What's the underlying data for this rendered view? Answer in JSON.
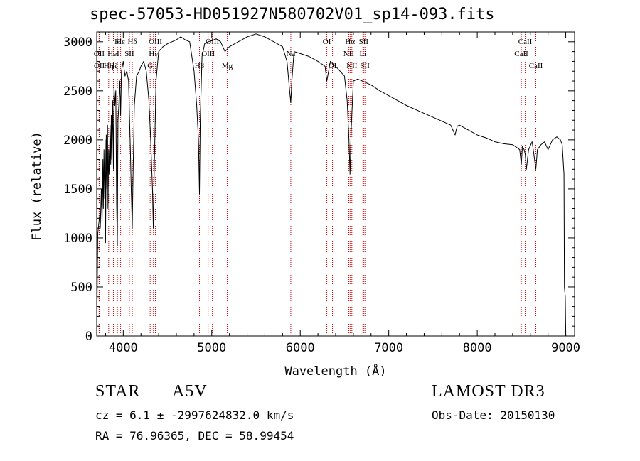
{
  "chart_data": {
    "type": "line",
    "title": "spec-57053-HD051927N580702V01_sp14-093.fits",
    "xlabel": "Wavelength (Å)",
    "ylabel": "Flux (relative)",
    "xlim": [
      3700,
      9100
    ],
    "ylim": [
      0,
      3100
    ],
    "xticks": [
      4000,
      5000,
      6000,
      7000,
      8000,
      9000
    ],
    "yticks": [
      0,
      500,
      1000,
      1500,
      2000,
      2500,
      3000
    ],
    "series": [
      {
        "name": "spectrum",
        "x": [
          3700,
          3712,
          3724,
          3736,
          3740,
          3752,
          3760,
          3770,
          3775,
          3782,
          3790,
          3795,
          3800,
          3808,
          3815,
          3822,
          3828,
          3835,
          3842,
          3850,
          3858,
          3865,
          3870,
          3880,
          3889,
          3895,
          3905,
          3915,
          3925,
          3933,
          3940,
          3950,
          3960,
          3970,
          3980,
          3990,
          4000,
          4020,
          4040,
          4060,
          4080,
          4090,
          4102,
          4110,
          4125,
          4150,
          4180,
          4200,
          4230,
          4260,
          4290,
          4310,
          4330,
          4340,
          4350,
          4370,
          4400,
          4450,
          4500,
          4550,
          4600,
          4650,
          4700,
          4750,
          4800,
          4830,
          4850,
          4861,
          4870,
          4890,
          4920,
          4960,
          5000,
          5050,
          5100,
          5150,
          5200,
          5300,
          5400,
          5500,
          5600,
          5700,
          5800,
          5850,
          5880,
          5893,
          5905,
          5930,
          6000,
          6100,
          6200,
          6280,
          6300,
          6340,
          6400,
          6450,
          6500,
          6530,
          6550,
          6562,
          6575,
          6600,
          6650,
          6700,
          6800,
          6900,
          7000,
          7100,
          7200,
          7300,
          7400,
          7500,
          7600,
          7700,
          7750,
          7762,
          7775,
          7800,
          7900,
          8000,
          8100,
          8200,
          8300,
          8400,
          8450,
          8480,
          8498,
          8510,
          8530,
          8542,
          8555,
          8580,
          8620,
          8640,
          8662,
          8680,
          8720,
          8760,
          8800,
          8850,
          8900,
          8940,
          8960,
          8980,
          8985,
          8995,
          9000
        ],
        "values": [
          0,
          1050,
          1150,
          1250,
          1100,
          1500,
          1150,
          1800,
          1300,
          1900,
          1400,
          2000,
          950,
          2050,
          1500,
          2150,
          1300,
          1900,
          1650,
          2150,
          1750,
          2250,
          1800,
          2400,
          1700,
          2550,
          2350,
          2500,
          1350,
          920,
          2200,
          2350,
          2600,
          2250,
          2700,
          2750,
          2800,
          2650,
          2700,
          2600,
          1900,
          1500,
          1100,
          1600,
          2350,
          2650,
          2700,
          2750,
          2800,
          2700,
          2400,
          2000,
          1500,
          1100,
          1700,
          2600,
          2900,
          2950,
          2980,
          3000,
          3020,
          3050,
          3020,
          3000,
          2700,
          2350,
          2000,
          1450,
          2200,
          2850,
          2980,
          3000,
          3010,
          3030,
          3000,
          2900,
          2950,
          3000,
          3050,
          3080,
          3050,
          3000,
          2950,
          2800,
          2500,
          2380,
          2600,
          2900,
          2880,
          2850,
          2800,
          2750,
          2600,
          2800,
          2750,
          2700,
          2650,
          2400,
          2000,
          1650,
          2100,
          2600,
          2620,
          2600,
          2560,
          2500,
          2450,
          2400,
          2350,
          2310,
          2270,
          2230,
          2190,
          2150,
          2050,
          2100,
          2140,
          2150,
          2100,
          2050,
          2020,
          1980,
          1960,
          1950,
          1920,
          1900,
          1750,
          1930,
          1900,
          1850,
          1700,
          1900,
          1980,
          1850,
          1700,
          1900,
          1950,
          1980,
          1900,
          2000,
          2030,
          2000,
          1950,
          1650,
          500,
          400,
          0
        ]
      }
    ],
    "lines": [
      {
        "name": "Hε",
        "x": 3970,
        "row": 1
      },
      {
        "name": "OII",
        "x": 3727,
        "row": 2
      },
      {
        "name": "OII",
        "x": 3729,
        "row": 3
      },
      {
        "name": "Hη",
        "x": 3835,
        "row": 3
      },
      {
        "name": "Hζ",
        "x": 3889,
        "row": 3
      },
      {
        "name": "K",
        "x": 3934,
        "row": 1
      },
      {
        "name": "HeI",
        "x": 3889,
        "row": 2
      },
      {
        "name": "SII",
        "x": 4069,
        "row": 2
      },
      {
        "name": "Hδ",
        "x": 4102,
        "row": 1
      },
      {
        "name": "OIII",
        "x": 4363,
        "row": 1
      },
      {
        "name": "Hγ",
        "x": 4341,
        "row": 2
      },
      {
        "name": "G",
        "x": 4304,
        "row": 3
      },
      {
        "name": "Hβ",
        "x": 4861,
        "row": 3
      },
      {
        "name": "OIII",
        "x": 4959,
        "row": 2
      },
      {
        "name": "OIII",
        "x": 5007,
        "row": 1
      },
      {
        "name": "Mg",
        "x": 5175,
        "row": 3
      },
      {
        "name": "Na",
        "x": 5893,
        "row": 2
      },
      {
        "name": "OI",
        "x": 6300,
        "row": 1
      },
      {
        "name": "OI",
        "x": 6364,
        "row": 3
      },
      {
        "name": "Hα",
        "x": 6563,
        "row": 1
      },
      {
        "name": "NII",
        "x": 6548,
        "row": 2
      },
      {
        "name": "NII",
        "x": 6583,
        "row": 3
      },
      {
        "name": "SII",
        "x": 6716,
        "row": 1
      },
      {
        "name": "Li",
        "x": 6708,
        "row": 2
      },
      {
        "name": "SII",
        "x": 6731,
        "row": 3
      },
      {
        "name": "CaII",
        "x": 8542,
        "row": 1
      },
      {
        "name": "CaII",
        "x": 8498,
        "row": 2
      },
      {
        "name": "CaII",
        "x": 8662,
        "row": 3
      }
    ]
  },
  "info": {
    "obj_class": "STAR",
    "subclass": "A5V",
    "survey": "LAMOST DR3",
    "cz_line": "cz = 6.1 ± -2997624832.0 km/s",
    "obs_date": "Obs-Date: 20150130",
    "coords": "RA =  76.96365, DEC =  58.99454"
  }
}
